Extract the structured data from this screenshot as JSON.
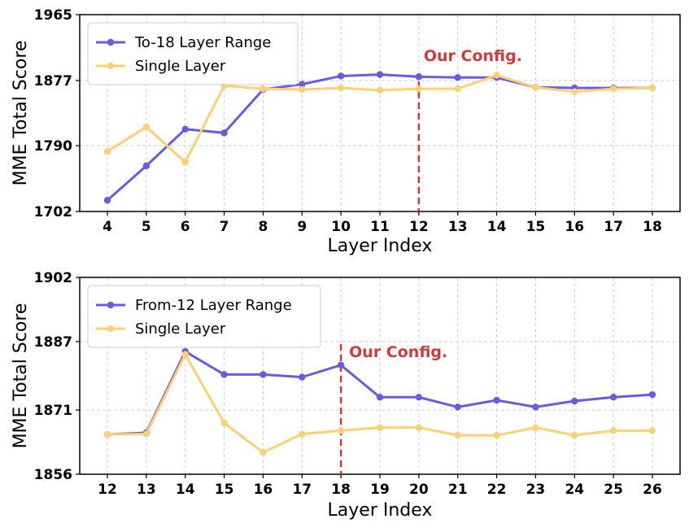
{
  "chart_data": [
    {
      "type": "line",
      "name": "top-chart",
      "xlabel": "Layer Index",
      "ylabel": "MME Total Score",
      "x": [
        4,
        5,
        6,
        7,
        8,
        9,
        10,
        11,
        12,
        13,
        14,
        15,
        16,
        17,
        18
      ],
      "yticks": [
        1702,
        1790,
        1877,
        1965
      ],
      "ylim": [
        1702,
        1965
      ],
      "grid": true,
      "legend_position": "top-left",
      "series": [
        {
          "name": "To-18 Layer Range",
          "color": "#6a5ae0",
          "values": [
            1717,
            1763,
            1812,
            1807,
            1865,
            1872,
            1883,
            1885,
            1882,
            1881,
            1881,
            1868,
            1867,
            1867,
            1867
          ]
        },
        {
          "name": "Single Layer",
          "color": "#fdd073",
          "values": [
            1782,
            1815,
            1768,
            1870,
            1866,
            1865,
            1867,
            1864,
            1866,
            1866,
            1884,
            1868,
            1862,
            1866,
            1867
          ]
        }
      ],
      "annotation": {
        "x": 12,
        "label": "Our Config.",
        "color": "#d03a3a"
      }
    },
    {
      "type": "line",
      "name": "bottom-chart",
      "xlabel": "Layer Index",
      "ylabel": "MME Total Score",
      "x": [
        12,
        13,
        14,
        15,
        16,
        17,
        18,
        19,
        20,
        21,
        22,
        23,
        24,
        25,
        26
      ],
      "yticks": [
        1856,
        1871,
        1887,
        1902
      ],
      "ylim": [
        1856,
        1902
      ],
      "grid": true,
      "legend_position": "top-left",
      "series": [
        {
          "name": "From-12 Layer Range",
          "color": "#6a5ae0",
          "values": [
            1865.3,
            1865.7,
            1884.7,
            1879.3,
            1879.3,
            1878.7,
            1881.5,
            1874.0,
            1874.0,
            1871.7,
            1873.3,
            1871.7,
            1873.1,
            1874.0,
            1874.6
          ]
        },
        {
          "name": "Single Layer",
          "color": "#fdd073",
          "values": [
            1865.3,
            1865.4,
            1884.0,
            1868.0,
            1861.1,
            1865.4,
            1866.2,
            1866.9,
            1866.9,
            1865.1,
            1865.1,
            1866.9,
            1865.1,
            1866.2,
            1866.2
          ]
        }
      ],
      "annotation": {
        "x": 18,
        "label": "Our Config.",
        "color": "#d03a3a"
      }
    }
  ]
}
